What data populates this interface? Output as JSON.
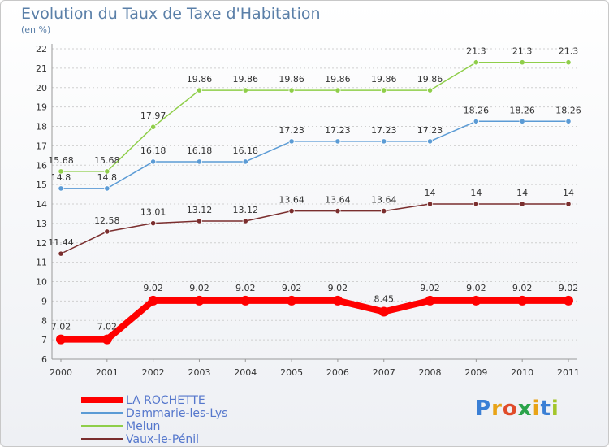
{
  "header": {
    "title": "Evolution du Taux de Taxe d'Habitation",
    "unit": "(en %)"
  },
  "logo": {
    "text": "Proxiti",
    "letters": [
      "P",
      "r",
      "o",
      "x",
      "i",
      "t",
      "i"
    ],
    "colors": [
      "#3a7fd5",
      "#e8a317",
      "#e04c2a",
      "#2aa34a",
      "#e8a317",
      "#3a7fd5",
      "#a3c52a"
    ]
  },
  "chart_data": {
    "type": "line",
    "title": "Evolution du Taux de Taxe d'Habitation",
    "ylabel": "(en %)",
    "xlabel": "",
    "x": [
      "2000",
      "2001",
      "2002",
      "2003",
      "2004",
      "2005",
      "2006",
      "2007",
      "2008",
      "2009",
      "2010",
      "2011"
    ],
    "ylim": [
      6,
      22
    ],
    "yticks": [
      6,
      7,
      8,
      9,
      10,
      11,
      12,
      13,
      14,
      15,
      16,
      17,
      18,
      19,
      20,
      21,
      22
    ],
    "grid": true,
    "legend_position": "bottom-left",
    "series": [
      {
        "name": "LA ROCHETTE",
        "color": "#ff0000",
        "emphasis": true,
        "values": [
          7.02,
          7.02,
          9.02,
          9.02,
          9.02,
          9.02,
          9.02,
          8.45,
          9.02,
          9.02,
          9.02,
          9.02
        ],
        "labels": [
          "7.02",
          "7.02",
          "9.02",
          "9.02",
          "9.02",
          "9.02",
          "9.02",
          "8.45",
          "9.02",
          "9.02",
          "9.02",
          "9.02"
        ]
      },
      {
        "name": "Dammarie-les-Lys",
        "color": "#5b9bd5",
        "emphasis": false,
        "values": [
          14.8,
          14.8,
          16.18,
          16.18,
          16.18,
          17.23,
          17.23,
          17.23,
          17.23,
          18.26,
          18.26,
          18.26
        ],
        "labels": [
          "14.8",
          "14.8",
          "16.18",
          "16.18",
          "16.18",
          "17.23",
          "17.23",
          "17.23",
          "17.23",
          "18.26",
          "18.26",
          "18.26"
        ]
      },
      {
        "name": "Melun",
        "color": "#8fce4a",
        "emphasis": false,
        "values": [
          15.68,
          15.68,
          17.97,
          19.86,
          19.86,
          19.86,
          19.86,
          19.86,
          19.86,
          21.3,
          21.3,
          21.3
        ],
        "labels": [
          "15.68",
          "15.68",
          "17.97",
          "19.86",
          "19.86",
          "19.86",
          "19.86",
          "19.86",
          "19.86",
          "21.3",
          "21.3",
          "21.3"
        ]
      },
      {
        "name": "Vaux-le-Pénil",
        "color": "#7a2e2e",
        "emphasis": false,
        "values": [
          11.44,
          12.58,
          13.01,
          13.12,
          13.12,
          13.64,
          13.64,
          13.64,
          14,
          14,
          14,
          14
        ],
        "labels": [
          "11.44",
          "12.58",
          "13.01",
          "13.12",
          "13.12",
          "13.64",
          "13.64",
          "13.64",
          "14",
          "14",
          "14",
          "14"
        ]
      }
    ]
  }
}
